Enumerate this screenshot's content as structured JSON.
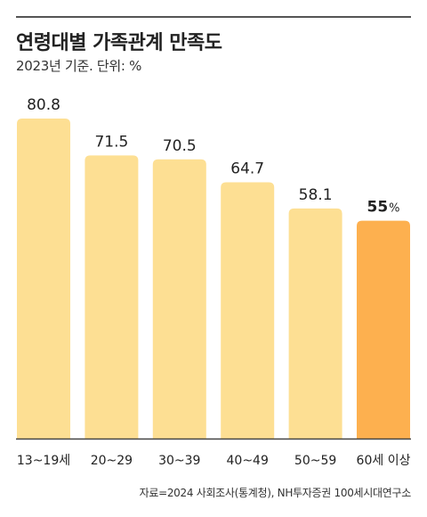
{
  "header": {
    "title": "연령대별 가족관계 만족도",
    "subtitle": "2023년 기준. 단위: %"
  },
  "source": "자료=2024 사회조사(통계청), NH투자증권 100세시대연구소",
  "colors": {
    "bar": "#FDDF93",
    "highlight": "#FDB04F",
    "text": "#222222",
    "axis": "#444444"
  },
  "chart_data": {
    "type": "bar",
    "title": "연령대별 가족관계 만족도",
    "subtitle": "2023년 기준. 단위: %",
    "categories": [
      "13~19세",
      "20~29",
      "30~39",
      "40~49",
      "50~59",
      "60세 이상"
    ],
    "values": [
      80.8,
      71.5,
      70.5,
      64.7,
      58.1,
      55
    ],
    "value_labels": [
      "80.8",
      "71.5",
      "70.5",
      "64.7",
      "58.1",
      "55"
    ],
    "highlight_unit": "%",
    "highlight_index": 5,
    "ylim": [
      0,
      85
    ],
    "grid": false,
    "legend": "none"
  }
}
